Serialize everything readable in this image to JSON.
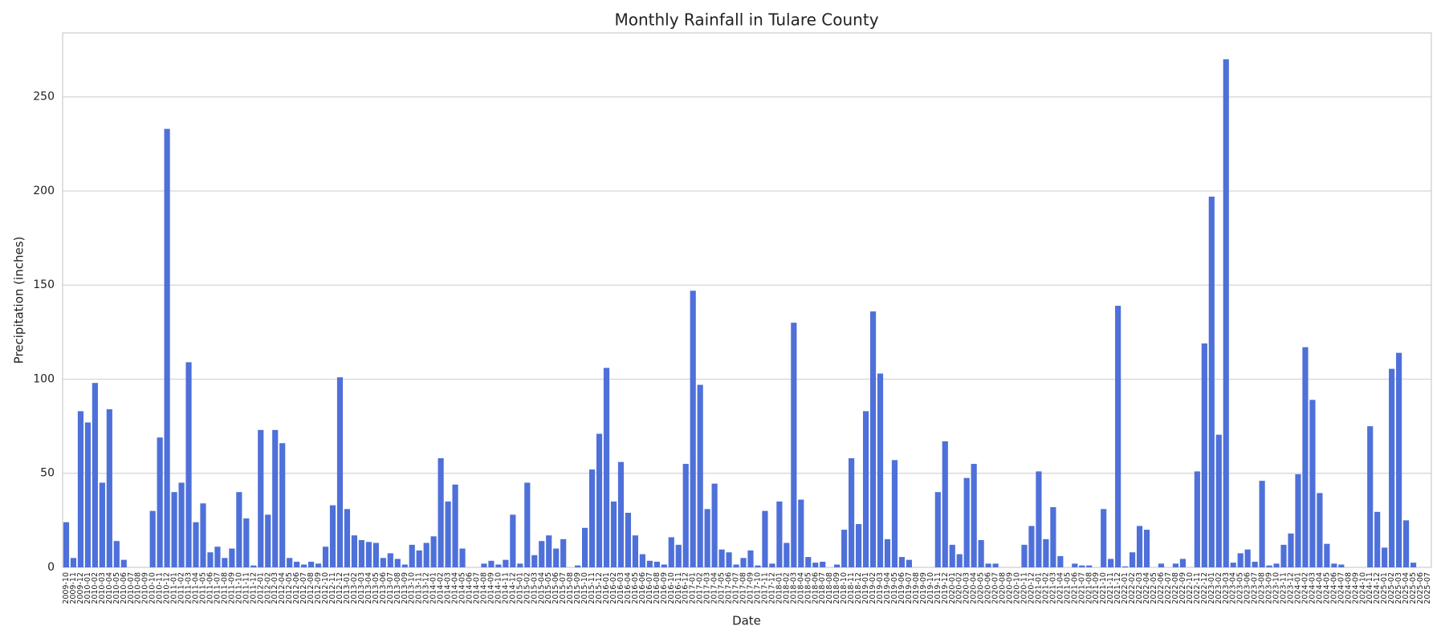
{
  "chart_data": {
    "type": "bar",
    "title": "Monthly Rainfall in Tulare County",
    "x_label": "Date",
    "y_label": "Precipitation (inches)",
    "color": "#4e70d9",
    "grid": true,
    "ylim": [
      0,
      284
    ],
    "yticks": [
      0,
      50,
      100,
      150,
      200,
      250
    ],
    "categories": [
      "2009-10",
      "2009-11",
      "2009-12",
      "2010-01",
      "2010-02",
      "2010-03",
      "2010-04",
      "2010-05",
      "2010-06",
      "2010-07",
      "2010-08",
      "2010-09",
      "2010-10",
      "2010-11",
      "2010-12",
      "2011-01",
      "2011-02",
      "2011-03",
      "2011-04",
      "2011-05",
      "2011-06",
      "2011-07",
      "2011-08",
      "2011-09",
      "2011-10",
      "2011-11",
      "2011-12",
      "2012-01",
      "2012-02",
      "2012-03",
      "2012-04",
      "2012-05",
      "2012-06",
      "2012-07",
      "2012-08",
      "2012-09",
      "2012-10",
      "2012-11",
      "2012-12",
      "2013-01",
      "2013-02",
      "2013-03",
      "2013-04",
      "2013-05",
      "2013-06",
      "2013-07",
      "2013-08",
      "2013-09",
      "2013-10",
      "2013-11",
      "2013-12",
      "2014-01",
      "2014-02",
      "2014-03",
      "2014-04",
      "2014-05",
      "2014-06",
      "2014-07",
      "2014-08",
      "2014-09",
      "2014-10",
      "2014-11",
      "2014-12",
      "2015-01",
      "2015-02",
      "2015-03",
      "2015-04",
      "2015-05",
      "2015-06",
      "2015-07",
      "2015-08",
      "2015-09",
      "2015-10",
      "2015-11",
      "2015-12",
      "2016-01",
      "2016-02",
      "2016-03",
      "2016-04",
      "2016-05",
      "2016-06",
      "2016-07",
      "2016-08",
      "2016-09",
      "2016-10",
      "2016-11",
      "2016-12",
      "2017-01",
      "2017-02",
      "2017-03",
      "2017-04",
      "2017-05",
      "2017-06",
      "2017-07",
      "2017-08",
      "2017-09",
      "2017-10",
      "2017-11",
      "2017-12",
      "2018-01",
      "2018-02",
      "2018-03",
      "2018-04",
      "2018-05",
      "2018-06",
      "2018-07",
      "2018-08",
      "2018-09",
      "2018-10",
      "2018-11",
      "2018-12",
      "2019-01",
      "2019-02",
      "2019-03",
      "2019-04",
      "2019-05",
      "2019-06",
      "2019-07",
      "2019-08",
      "2019-09",
      "2019-10",
      "2019-11",
      "2019-12",
      "2020-01",
      "2020-02",
      "2020-03",
      "2020-04",
      "2020-05",
      "2020-06",
      "2020-07",
      "2020-08",
      "2020-09",
      "2020-10",
      "2020-11",
      "2020-12",
      "2021-01",
      "2021-02",
      "2021-03",
      "2021-04",
      "2021-05",
      "2021-06",
      "2021-07",
      "2021-08",
      "2021-09",
      "2021-10",
      "2021-11",
      "2021-12",
      "2022-01",
      "2022-02",
      "2022-03",
      "2022-04",
      "2022-05",
      "2022-06",
      "2022-07",
      "2022-08",
      "2022-09",
      "2022-10",
      "2022-11",
      "2022-12",
      "2023-01",
      "2023-02",
      "2023-03",
      "2023-04",
      "2023-05",
      "2023-06",
      "2023-07",
      "2023-08",
      "2023-09",
      "2023-10",
      "2023-11",
      "2023-12",
      "2024-01",
      "2024-02",
      "2024-03",
      "2024-04",
      "2024-05",
      "2024-06",
      "2024-07",
      "2024-08",
      "2024-09",
      "2024-10",
      "2024-11",
      "2024-12",
      "2025-01",
      "2025-02",
      "2025-03",
      "2025-04",
      "2025-05",
      "2025-06",
      "2025-07"
    ],
    "values": [
      24,
      5,
      83,
      77,
      98,
      45,
      84,
      14,
      4,
      0,
      0,
      0,
      30,
      69,
      233,
      40,
      45,
      109,
      24,
      34,
      8,
      11,
      5,
      10,
      40,
      26,
      1,
      73,
      28,
      73,
      66,
      5,
      3,
      1.5,
      3,
      2,
      11,
      33,
      101,
      31,
      17,
      14.5,
      13.5,
      13,
      5,
      7.5,
      4.5,
      1.5,
      12,
      9,
      13,
      16.5,
      58,
      35,
      44,
      10,
      0,
      0,
      2,
      3.5,
      1.5,
      4,
      28,
      2,
      45,
      6.5,
      14,
      17,
      10,
      15,
      0,
      1,
      21,
      52,
      71,
      106,
      35,
      56,
      29,
      17,
      7,
      3.5,
      3,
      1.5,
      16,
      12,
      55,
      147,
      97,
      31,
      44.5,
      9.5,
      8,
      1.5,
      5,
      9,
      1,
      30,
      2,
      35,
      13,
      130,
      36,
      5.5,
      2.5,
      3,
      0,
      1.5,
      20,
      58,
      23,
      83,
      136,
      103,
      15,
      57,
      5.5,
      4,
      0,
      0,
      0,
      40,
      67,
      12,
      7,
      47.5,
      55,
      14.5,
      2,
      2,
      0,
      0,
      0,
      12,
      22,
      51,
      15,
      32,
      6,
      0,
      2,
      1,
      1,
      0,
      31,
      4.5,
      139,
      0.5,
      8,
      22,
      20,
      0,
      2,
      0,
      2,
      4.5,
      0,
      51,
      119,
      197,
      70.5,
      270,
      2.5,
      7.5,
      9.5,
      3,
      46,
      1,
      2,
      12,
      18,
      49.5,
      117,
      89,
      39.5,
      12.5,
      2,
      1.5,
      0,
      0,
      0,
      75,
      29.5,
      10.5,
      105.5,
      114,
      25,
      2.5,
      0,
      0
    ]
  }
}
